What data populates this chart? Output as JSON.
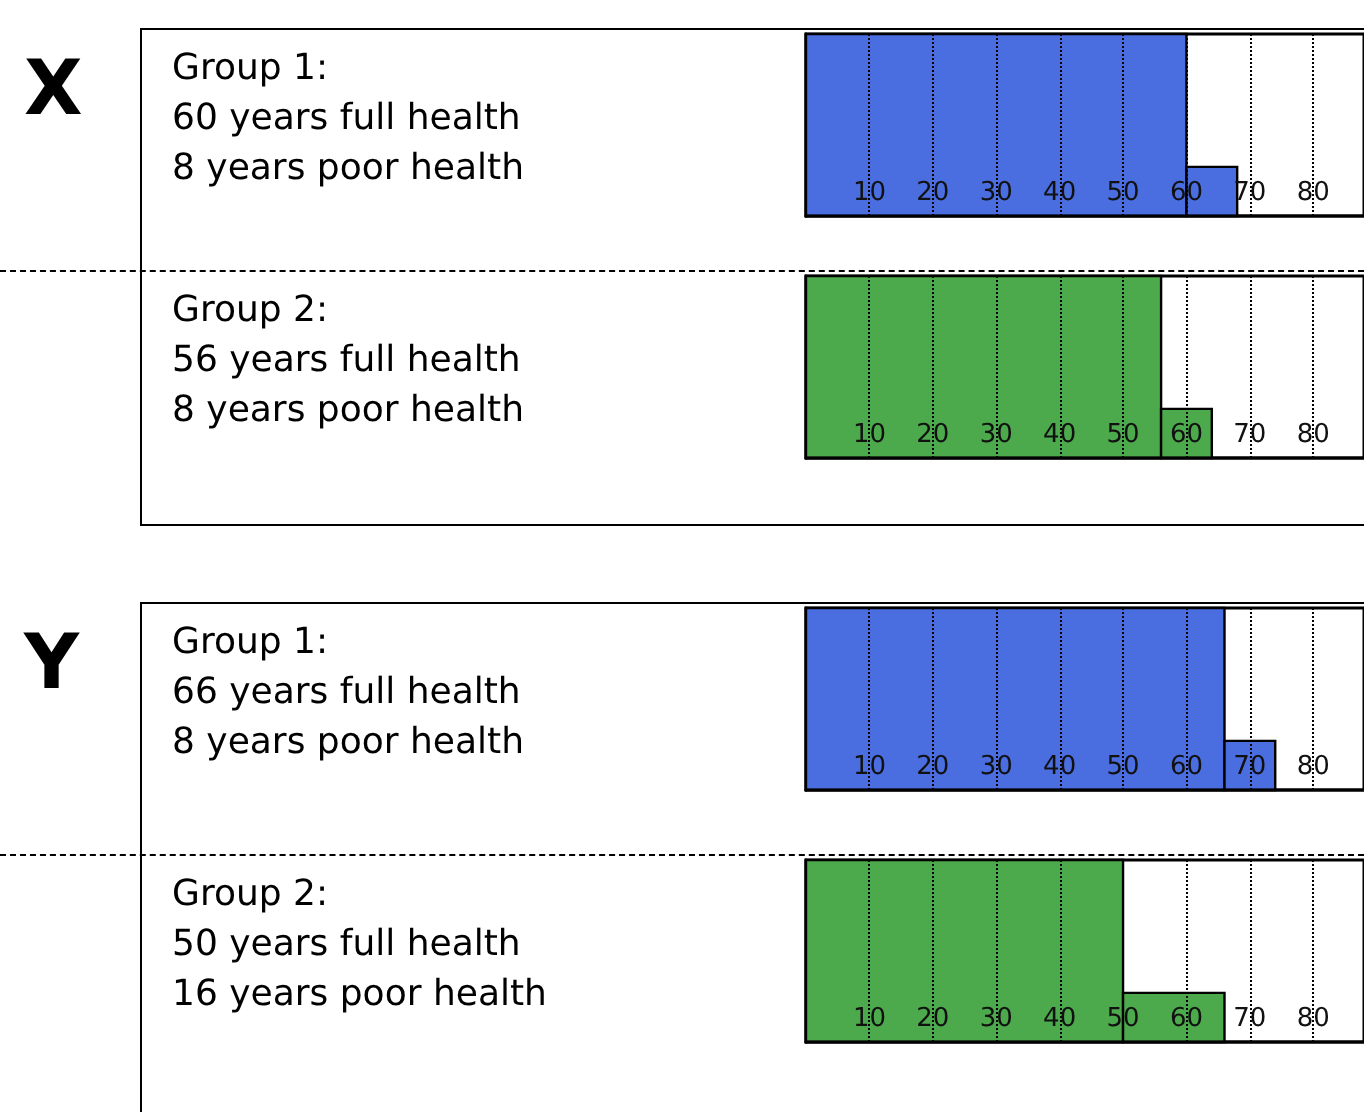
{
  "chart_data": [
    {
      "type": "bar",
      "annotations": [
        "X",
        "Group 1:",
        "60 years full health",
        "8 years poor health"
      ],
      "orientation": "horizontal",
      "stacked": true,
      "categories": [
        null
      ],
      "series": [
        {
          "color": "#4a6ee0",
          "values": [
            60
          ]
        },
        {
          "color": "#4a6ee0",
          "values": [
            8
          ]
        }
      ],
      "xlim": [
        0,
        88
      ],
      "xticks": [
        10,
        20,
        30,
        40,
        50,
        60,
        70,
        80
      ],
      "grid": "x"
    },
    {
      "type": "bar",
      "annotations": [
        "Group 2:",
        "56 years full health",
        "8 years poor health"
      ],
      "orientation": "horizontal",
      "stacked": true,
      "categories": [
        null
      ],
      "series": [
        {
          "color": "#4caa4c",
          "values": [
            56
          ]
        },
        {
          "color": "#4caa4c",
          "values": [
            8
          ]
        }
      ],
      "xlim": [
        0,
        88
      ],
      "xticks": [
        10,
        20,
        30,
        40,
        50,
        60,
        70,
        80
      ],
      "grid": "x"
    },
    {
      "type": "bar",
      "annotations": [
        "Y",
        "Group 1:",
        "66 years full health",
        "8 years poor health"
      ],
      "orientation": "horizontal",
      "stacked": true,
      "categories": [
        null
      ],
      "series": [
        {
          "color": "#4a6ee0",
          "values": [
            66
          ]
        },
        {
          "color": "#4a6ee0",
          "values": [
            8
          ]
        }
      ],
      "xlim": [
        0,
        88
      ],
      "xticks": [
        10,
        20,
        30,
        40,
        50,
        60,
        70,
        80
      ],
      "grid": "x"
    },
    {
      "type": "bar",
      "annotations": [
        "Group 2:",
        "50 years full health",
        "16 years poor health"
      ],
      "orientation": "horizontal",
      "stacked": true,
      "categories": [
        null
      ],
      "series": [
        {
          "color": "#4caa4c",
          "values": [
            50
          ]
        },
        {
          "color": "#4caa4c",
          "values": [
            16
          ]
        }
      ],
      "xlim": [
        0,
        88
      ],
      "xticks": [
        10,
        20,
        30,
        40,
        50,
        60,
        70,
        80
      ],
      "grid": "x"
    }
  ]
}
